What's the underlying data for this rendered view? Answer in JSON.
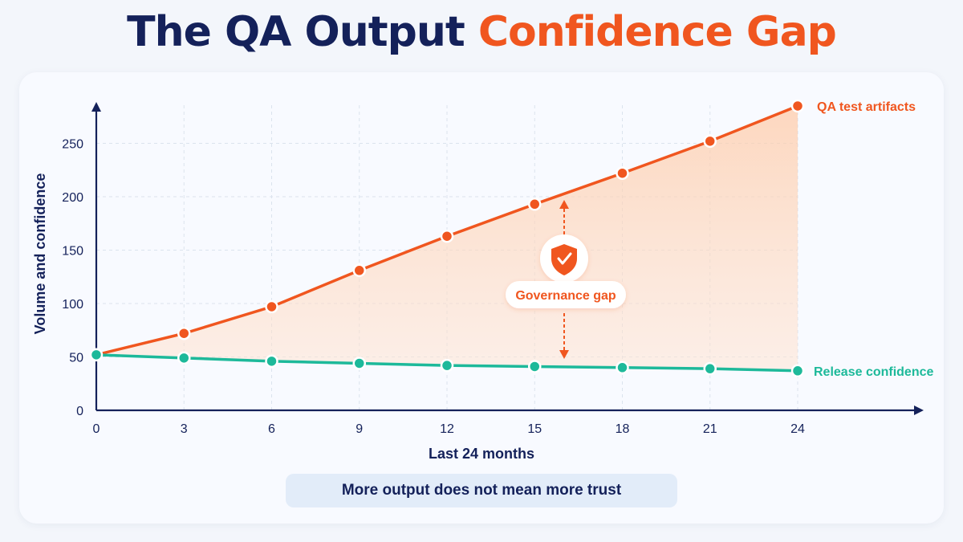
{
  "title": {
    "part1": "The QA Output",
    "part2": "Confidence Gap"
  },
  "footer_text": "More output does not mean more trust",
  "colors": {
    "orange": "#f0561f",
    "teal": "#1db99a",
    "navy": "#14215a"
  },
  "chart_data": {
    "type": "line",
    "title": "",
    "xlabel": "Last 24 months",
    "ylabel": "Volume and confidence",
    "x": [
      0,
      3,
      6,
      9,
      12,
      15,
      18,
      21,
      24
    ],
    "xlim": [
      0,
      24
    ],
    "ylim": [
      0,
      270
    ],
    "yticks": [
      0,
      50,
      100,
      150,
      200,
      250
    ],
    "grid": true,
    "series": [
      {
        "name": "QA test artifacts",
        "color": "#f0561f",
        "values": [
          52,
          72,
          97,
          131,
          163,
          193,
          222,
          252,
          285
        ]
      },
      {
        "name": "Release confidence",
        "color": "#1db99a",
        "values": [
          52,
          49,
          46,
          44,
          42,
          41,
          40,
          39,
          37
        ]
      }
    ],
    "annotation": {
      "label": "Governance gap",
      "icon": "shield-check-icon"
    }
  }
}
